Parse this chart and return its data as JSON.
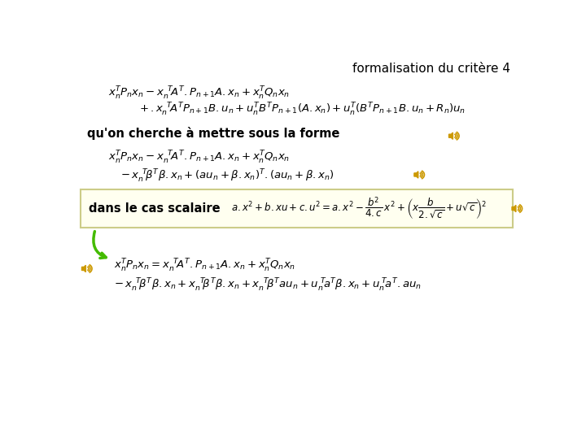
{
  "title": "formalisation du critère 4",
  "background_color": "#ffffff",
  "title_color": "#000000",
  "title_fontsize": 11,
  "text_color": "#000000",
  "label_qu_on": "qu'on cherche à mettre sous la forme",
  "label_dans_le_cas": "dans le cas scalaire",
  "box_facecolor": "#fffff0",
  "box_edgecolor": "#cccc88",
  "speaker_color": "#cc9900",
  "arrow_color": "#44bb00",
  "eq_fontsize": 9.5,
  "label_fontsize": 10.5
}
